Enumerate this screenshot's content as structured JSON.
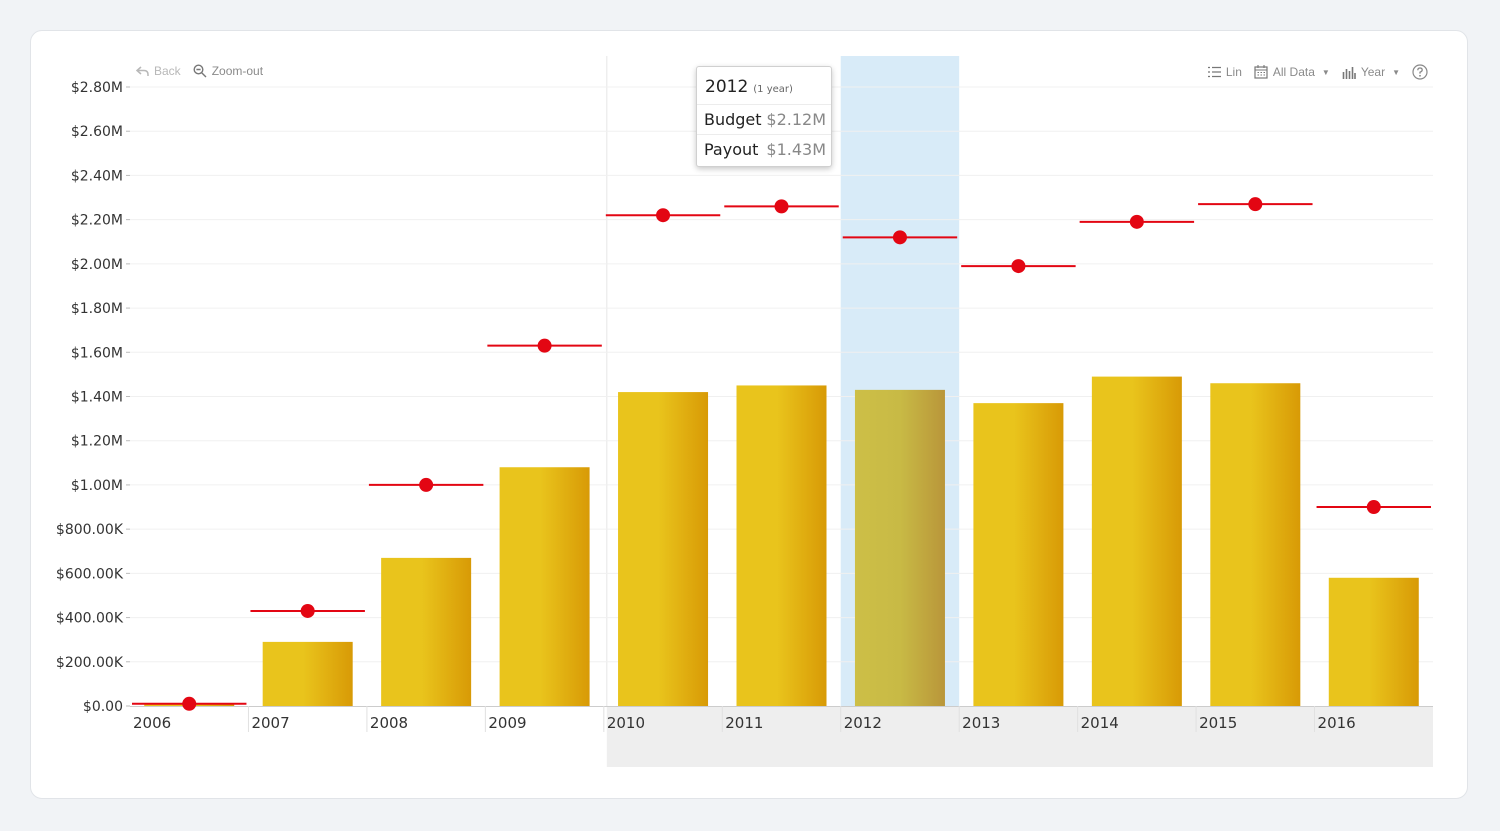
{
  "toolbar": {
    "back_label": "Back",
    "zoom_out_label": "Zoom-out",
    "scale_label": "Lin",
    "range_label": "All Data",
    "period_label": "Year"
  },
  "tooltip": {
    "year": "2012",
    "span": "(1 year)",
    "rows": [
      {
        "label": "Budget",
        "value": "$2.12M"
      },
      {
        "label": "Payout",
        "value": "$1.43M"
      }
    ]
  },
  "colors": {
    "bar_light": "#e9c41c",
    "bar_dark": "#d89a06",
    "marker": "#e30613",
    "highlight": "#d8ebf8"
  },
  "chart_data": {
    "type": "bar",
    "categories": [
      "2006",
      "2007",
      "2008",
      "2009",
      "2010",
      "2011",
      "2012",
      "2013",
      "2014",
      "2015",
      "2016"
    ],
    "series": [
      {
        "name": "Payout",
        "type": "bar",
        "values": [
          0.01,
          0.29,
          0.67,
          1.08,
          1.42,
          1.45,
          1.43,
          1.37,
          1.49,
          1.46,
          0.58
        ]
      },
      {
        "name": "Budget",
        "type": "marker",
        "values": [
          0.01,
          0.43,
          1.0,
          1.63,
          2.22,
          2.26,
          2.12,
          1.99,
          2.19,
          2.27,
          0.9
        ]
      }
    ],
    "ylim": [
      0,
      2.8
    ],
    "yticks": [
      0,
      0.2,
      0.4,
      0.6,
      0.8,
      1.0,
      1.2,
      1.4,
      1.6,
      1.8,
      2.0,
      2.2,
      2.4,
      2.6,
      2.8
    ],
    "ytick_labels": [
      "$0.00",
      "$200.00K",
      "$400.00K",
      "$600.00K",
      "$800.00K",
      "$1.00M",
      "$1.20M",
      "$1.40M",
      "$1.60M",
      "$1.80M",
      "$2.00M",
      "$2.20M",
      "$2.40M",
      "$2.60M",
      "$2.80M"
    ],
    "highlight_category": "2012",
    "title": "",
    "xlabel": "",
    "ylabel": ""
  }
}
